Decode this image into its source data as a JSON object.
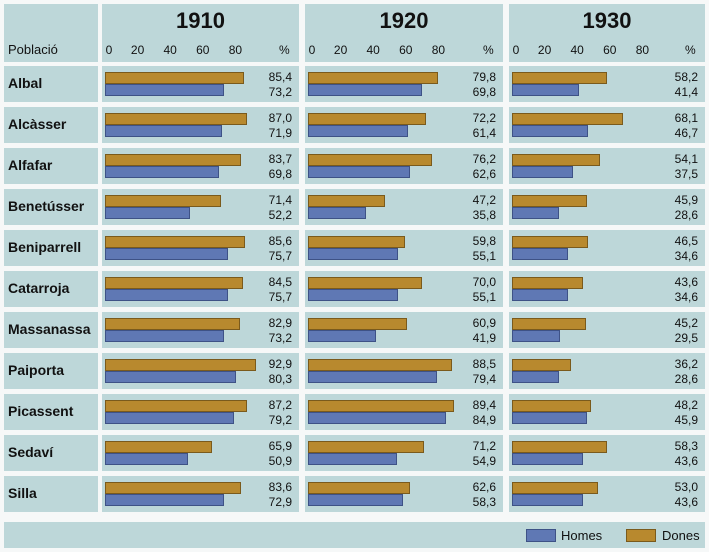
{
  "header": {
    "poblacio_label": "Població",
    "pct_label": "%"
  },
  "legend": {
    "homes": "Homes",
    "dones": "Dones"
  },
  "colors": {
    "homes": "#5f78b4",
    "dones": "#b8892e",
    "panel": "#bdd7d9"
  },
  "chart_data": {
    "type": "bar",
    "orientation": "horizontal",
    "xlim": [
      0,
      100
    ],
    "ticks": [
      "0",
      "20",
      "40",
      "60",
      "80"
    ],
    "categories": [
      "Albal",
      "Alcàsser",
      "Alfafar",
      "Benetússer",
      "Beniparrell",
      "Catarroja",
      "Massanassa",
      "Paiporta",
      "Picassent",
      "Sedaví",
      "Silla"
    ],
    "panels": [
      {
        "year": "1910",
        "dones": [
          "85,4",
          "87,0",
          "83,7",
          "71,4",
          "85,6",
          "84,5",
          "82,9",
          "92,9",
          "87,2",
          "65,9",
          "83,6"
        ],
        "homes": [
          "73,2",
          "71,9",
          "69,8",
          "52,2",
          "75,7",
          "75,7",
          "73,2",
          "80,3",
          "79,2",
          "50,9",
          "72,9"
        ]
      },
      {
        "year": "1920",
        "dones": [
          "79,8",
          "72,2",
          "76,2",
          "47,2",
          "59,8",
          "70,0",
          "60,9",
          "88,5",
          "89,4",
          "71,2",
          "62,6"
        ],
        "homes": [
          "69,8",
          "61,4",
          "62,6",
          "35,8",
          "55,1",
          "55,1",
          "41,9",
          "79,4",
          "84,9",
          "54,9",
          "58,3"
        ]
      },
      {
        "year": "1930",
        "dones": [
          "58,2",
          "68,1",
          "54,1",
          "45,9",
          "46,5",
          "43,6",
          "45,2",
          "36,2",
          "48,2",
          "58,3",
          "53,0"
        ],
        "homes": [
          "41,4",
          "46,7",
          "37,5",
          "28,6",
          "34,6",
          "34,6",
          "29,5",
          "28,6",
          "45,9",
          "43,6",
          "43,6"
        ]
      }
    ]
  }
}
